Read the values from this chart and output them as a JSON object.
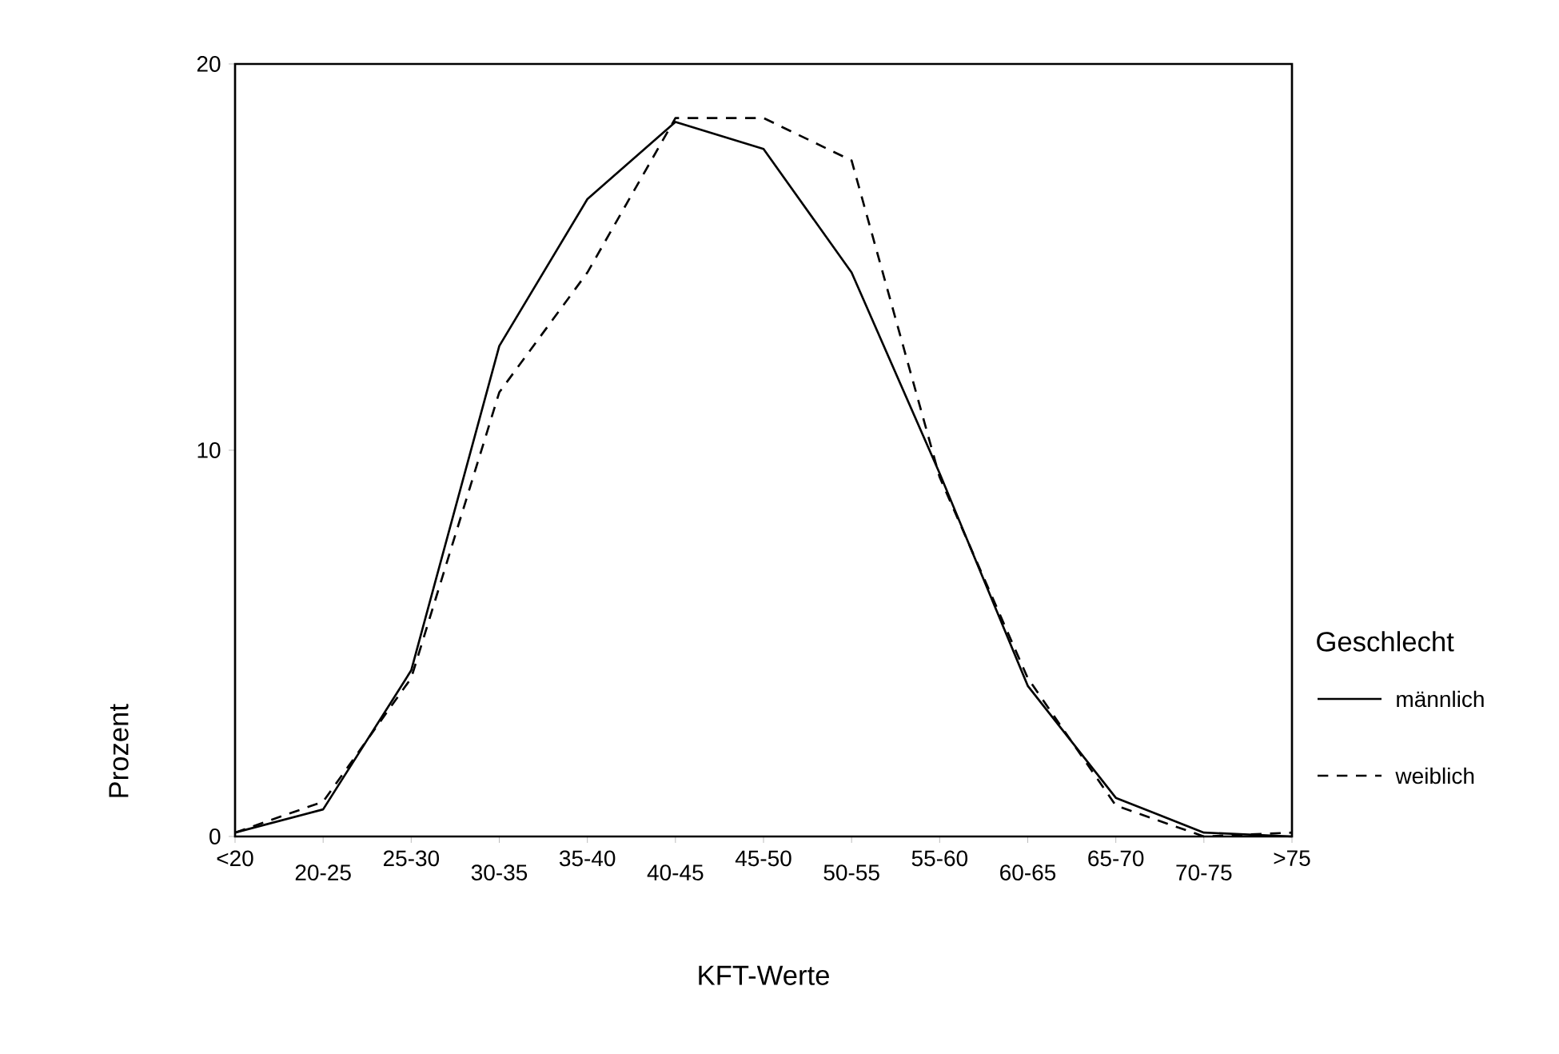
{
  "chart_data": {
    "type": "line",
    "xlabel": "KFT-Werte",
    "ylabel": "Prozent",
    "legend_title": "Geschlecht",
    "legend": "right",
    "categories": [
      "<20",
      "20-25",
      "25-30",
      "30-35",
      "35-40",
      "40-45",
      "45-50",
      "50-55",
      "55-60",
      "60-65",
      "65-70",
      "70-75",
      ">75"
    ],
    "ylim": [
      0,
      20
    ],
    "yticks": [
      0,
      10,
      20
    ],
    "series": [
      {
        "name": "männlich",
        "color": "#000000",
        "line_style": "solid",
        "values": [
          0.1,
          0.7,
          4.3,
          12.7,
          16.5,
          18.5,
          17.8,
          14.6,
          9.4,
          3.9,
          1.0,
          0.1,
          0
        ]
      },
      {
        "name": "weiblich",
        "color": "#000000",
        "line_style": "dashed",
        "values": [
          0.1,
          0.9,
          4.1,
          11.5,
          14.6,
          18.6,
          18.6,
          17.5,
          9.3,
          4.1,
          0.8,
          0,
          0.1
        ]
      }
    ]
  }
}
